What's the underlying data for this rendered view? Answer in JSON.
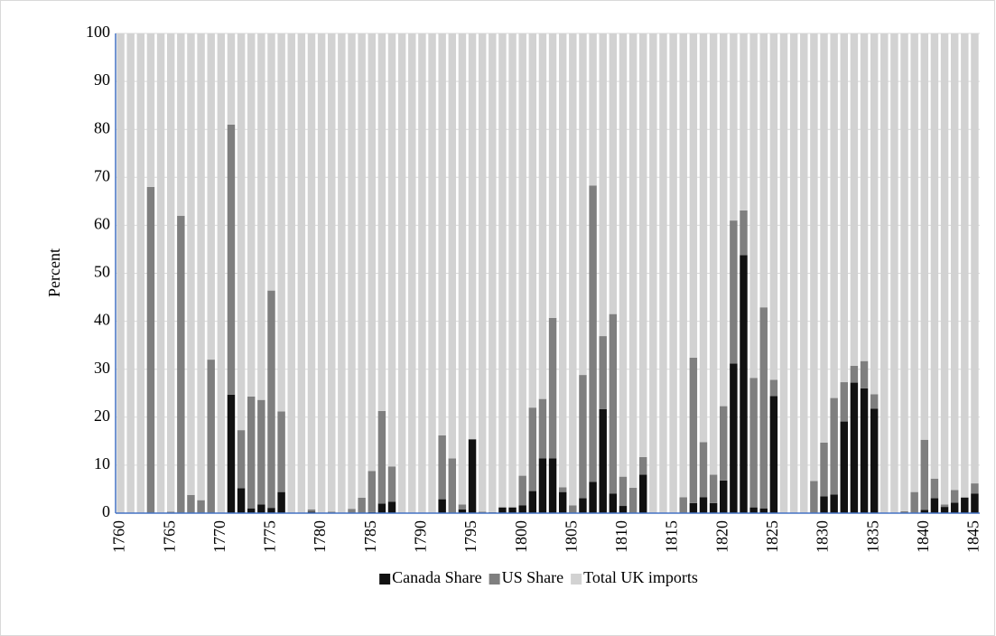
{
  "chart_data": {
    "type": "stacked_bar",
    "y_label": "Percent",
    "categories": [
      "1760",
      null,
      null,
      null,
      null,
      "1765",
      null,
      null,
      null,
      null,
      "1770",
      null,
      null,
      null,
      null,
      "1775",
      null,
      null,
      null,
      null,
      "1780",
      null,
      null,
      null,
      null,
      "1785",
      null,
      null,
      null,
      null,
      "1790",
      null,
      null,
      null,
      null,
      "1795",
      null,
      null,
      null,
      null,
      "1800",
      null,
      null,
      null,
      null,
      "1805",
      null,
      null,
      null,
      null,
      "1810",
      null,
      null,
      null,
      null,
      "1815",
      null,
      null,
      null,
      null,
      "1820",
      null,
      null,
      null,
      null,
      "1825",
      null,
      null,
      null,
      null,
      "1830",
      null,
      null,
      null,
      null,
      "1835",
      null,
      null,
      null,
      null,
      "1840",
      null,
      null,
      null,
      null,
      "1845"
    ],
    "series": [
      {
        "name": "Canada Share",
        "color": "#111111",
        "values": [
          0,
          0,
          0,
          0,
          0,
          0,
          0,
          0,
          0,
          0,
          0,
          24.7,
          5.2,
          1,
          1.8,
          1.1,
          4.4,
          0,
          0,
          0.3,
          0,
          0,
          0,
          0,
          0,
          0.2,
          2,
          2.4,
          0,
          0,
          0,
          0,
          2.9,
          0,
          0.8,
          15.4,
          0,
          0,
          1.2,
          1.2,
          1.6,
          4.6,
          11.4,
          11.4,
          4.4,
          0,
          3.1,
          6.5,
          21.7,
          4.1,
          1.5,
          0,
          8,
          0,
          0,
          0,
          0,
          2.1,
          3.3,
          2.1,
          6.8,
          31.2,
          53.8,
          1.2,
          1,
          24.4,
          0,
          0,
          0,
          0,
          3.5,
          3.9,
          19.1,
          27.2,
          26,
          21.8,
          0,
          0,
          0,
          0,
          0.7,
          3.1,
          1.3,
          2.2,
          3.2,
          4.1
        ]
      },
      {
        "name": "US Share",
        "color": "#7f7f7f",
        "values": [
          0,
          0,
          0,
          68,
          0,
          0.3,
          62,
          3.8,
          2.7,
          32,
          0,
          56.3,
          12.1,
          23.3,
          21.8,
          45.3,
          16.8,
          0,
          0,
          0.5,
          0,
          0.3,
          0,
          0.9,
          3.2,
          8.6,
          19.3,
          7.3,
          0,
          0,
          0,
          0,
          13.3,
          11.4,
          1,
          0,
          0.3,
          0.2,
          0,
          0,
          6.2,
          17.4,
          12.4,
          29.3,
          1,
          1.6,
          25.7,
          61.8,
          15.2,
          37.4,
          6.1,
          5.3,
          3.7,
          0,
          0,
          0,
          3.3,
          30.3,
          11.5,
          5.9,
          15.5,
          29.8,
          9.3,
          27,
          41.9,
          3.4,
          0,
          0,
          0,
          6.7,
          11.2,
          20.1,
          8.2,
          3.5,
          5.7,
          3,
          0,
          0,
          0.4,
          4.4,
          14.6,
          4.1,
          0.5,
          2.6,
          0.1,
          2.1
        ]
      },
      {
        "name": "Total UK imports",
        "color": "#d2d2d2",
        "values": [
          100,
          100,
          100,
          32,
          100,
          99.7,
          38,
          96.2,
          97.3,
          68,
          100,
          19,
          82.7,
          75.7,
          76.4,
          53.6,
          78.8,
          100,
          100,
          99.2,
          100,
          99.7,
          100,
          99.1,
          96.8,
          91.2,
          78.7,
          90.3,
          100,
          100,
          100,
          100,
          83.8,
          88.6,
          98.2,
          84.6,
          99.7,
          99.8,
          98.8,
          98.8,
          92.2,
          78,
          76.2,
          59.3,
          94.6,
          98.4,
          71.2,
          31.7,
          63.1,
          58.5,
          92.4,
          94.7,
          88.3,
          100,
          100,
          100,
          96.7,
          67.6,
          85.2,
          92,
          77.7,
          39,
          36.9,
          71.8,
          57.1,
          72.2,
          100,
          100,
          100,
          93.3,
          85.3,
          76,
          72.7,
          69.3,
          68.3,
          75.2,
          100,
          100,
          99.6,
          95.6,
          84.7,
          92.8,
          98.2,
          95.2,
          96.7,
          93.8
        ]
      }
    ],
    "ylim": [
      0,
      100
    ],
    "yticks": [
      0,
      10,
      20,
      30,
      40,
      50,
      60,
      70,
      80,
      90,
      100
    ],
    "grid": true,
    "legend": "bottom"
  }
}
